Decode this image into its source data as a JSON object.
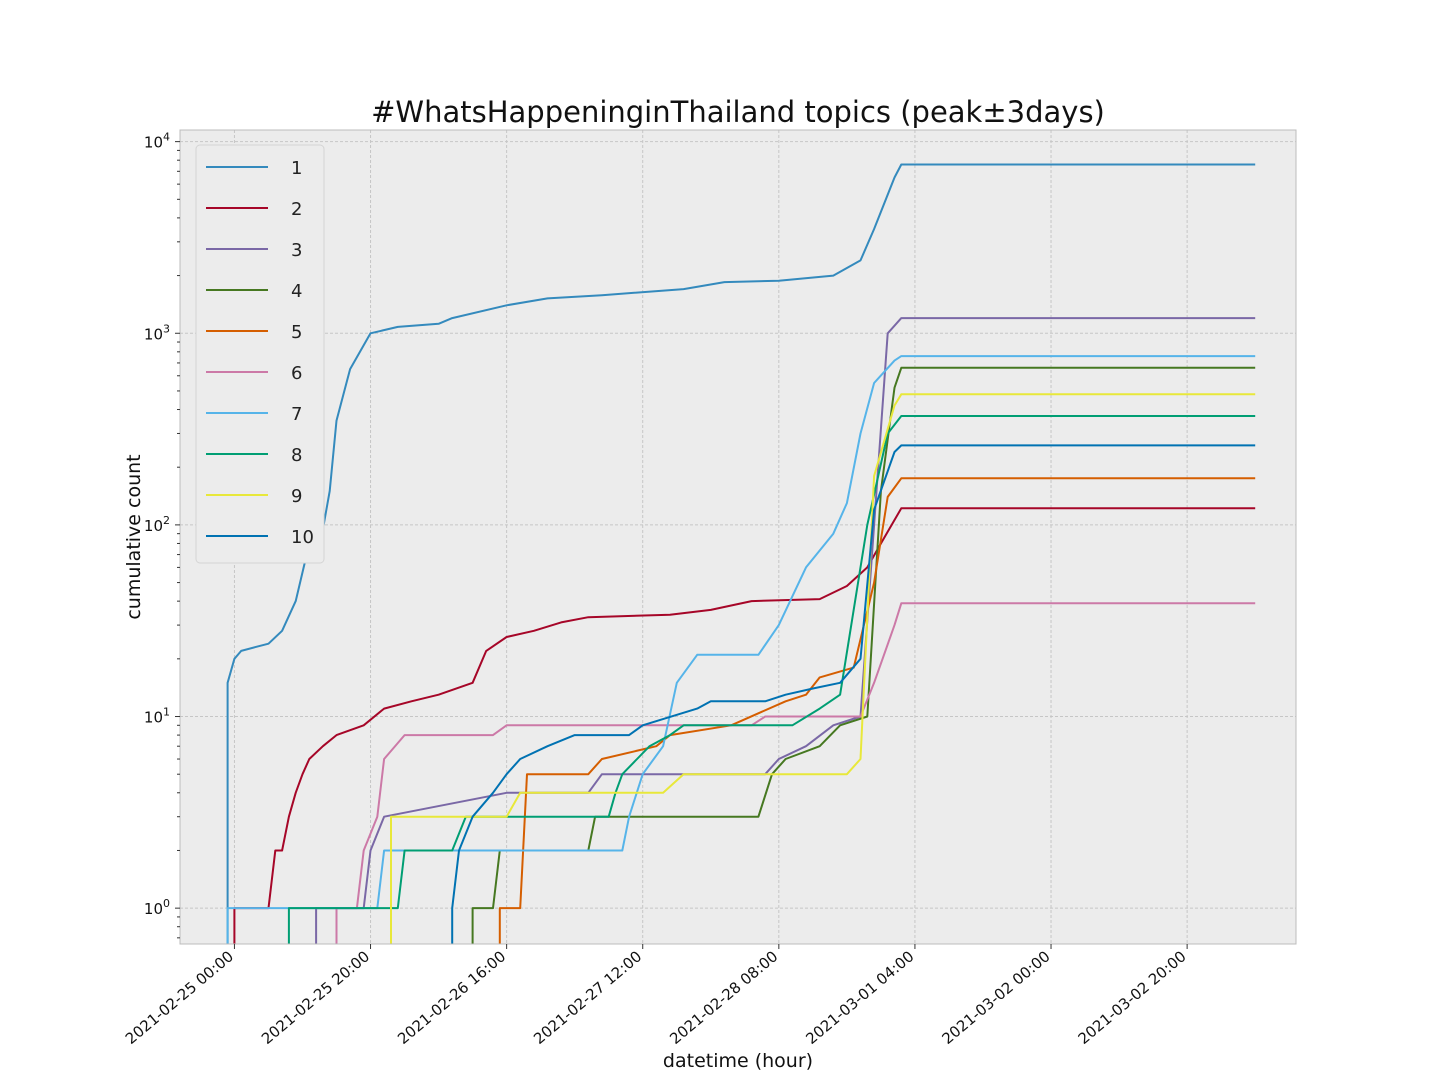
{
  "chart_data": {
    "type": "line",
    "title": "#WhatsHappeninginThailand topics (peak±3days)",
    "xlabel": "datetime (hour)",
    "ylabel": "cumulative count",
    "y_scale": "log",
    "ylim": [
      0.65,
      11500
    ],
    "xlim": [
      "2021-02-24 16:00",
      "2021-03-03 12:00"
    ],
    "x_ticks": [
      "2021-02-25 00:00",
      "2021-02-25 20:00",
      "2021-02-26 16:00",
      "2021-02-27 12:00",
      "2021-02-28 08:00",
      "2021-03-01 04:00",
      "2021-03-02 00:00",
      "2021-03-02 20:00"
    ],
    "y_ticks": [
      {
        "value": 1,
        "base": "10",
        "exp": "0"
      },
      {
        "value": 10,
        "base": "10",
        "exp": "1"
      },
      {
        "value": 100,
        "base": "10",
        "exp": "2"
      },
      {
        "value": 1000,
        "base": "10",
        "exp": "3"
      },
      {
        "value": 10000,
        "base": "10",
        "exp": "4"
      }
    ],
    "grid": true,
    "legend_position": "top-left",
    "background_color": "#ececec",
    "series": [
      {
        "name": "1",
        "color": "#348abd",
        "points": [
          [
            "2021-02-24 23:00",
            0.01
          ],
          [
            "2021-02-24 23:00",
            15
          ],
          [
            "2021-02-25 00:00",
            20
          ],
          [
            "2021-02-25 01:00",
            22
          ],
          [
            "2021-02-25 03:00",
            23
          ],
          [
            "2021-02-25 05:00",
            24
          ],
          [
            "2021-02-25 07:00",
            28
          ],
          [
            "2021-02-25 09:00",
            40
          ],
          [
            "2021-02-25 11:00",
            80
          ],
          [
            "2021-02-25 13:00",
            95
          ],
          [
            "2021-02-25 14:00",
            150
          ],
          [
            "2021-02-25 15:00",
            350
          ],
          [
            "2021-02-25 17:00",
            650
          ],
          [
            "2021-02-25 20:00",
            1000
          ],
          [
            "2021-02-26 00:00",
            1080
          ],
          [
            "2021-02-26 06:00",
            1120
          ],
          [
            "2021-02-26 08:00",
            1200
          ],
          [
            "2021-02-26 16:00",
            1400
          ],
          [
            "2021-02-26 22:00",
            1520
          ],
          [
            "2021-02-27 06:00",
            1580
          ],
          [
            "2021-02-27 18:00",
            1700
          ],
          [
            "2021-02-28 00:00",
            1850
          ],
          [
            "2021-02-28 08:00",
            1880
          ],
          [
            "2021-02-28 16:00",
            2000
          ],
          [
            "2021-02-28 20:00",
            2400
          ],
          [
            "2021-02-28 22:00",
            3500
          ],
          [
            "2021-03-01 01:00",
            6500
          ],
          [
            "2021-03-01 02:00",
            7600
          ],
          [
            "2021-03-03 06:00",
            7600
          ]
        ]
      },
      {
        "name": "2",
        "color": "#a60628",
        "points": [
          [
            "2021-02-25 00:00",
            0.01
          ],
          [
            "2021-02-25 00:00",
            1
          ],
          [
            "2021-02-25 05:00",
            1
          ],
          [
            "2021-02-25 06:00",
            2
          ],
          [
            "2021-02-25 07:00",
            2
          ],
          [
            "2021-02-25 08:00",
            3
          ],
          [
            "2021-02-25 09:00",
            4
          ],
          [
            "2021-02-25 10:00",
            5
          ],
          [
            "2021-02-25 11:00",
            6
          ],
          [
            "2021-02-25 13:00",
            7
          ],
          [
            "2021-02-25 15:00",
            8
          ],
          [
            "2021-02-25 19:00",
            9
          ],
          [
            "2021-02-25 22:00",
            11
          ],
          [
            "2021-02-26 02:00",
            12
          ],
          [
            "2021-02-26 06:00",
            13
          ],
          [
            "2021-02-26 11:00",
            15
          ],
          [
            "2021-02-26 13:00",
            22
          ],
          [
            "2021-02-26 16:00",
            26
          ],
          [
            "2021-02-26 20:00",
            28
          ],
          [
            "2021-02-27 00:00",
            31
          ],
          [
            "2021-02-27 04:00",
            33
          ],
          [
            "2021-02-27 16:00",
            34
          ],
          [
            "2021-02-27 22:00",
            36
          ],
          [
            "2021-02-28 04:00",
            40
          ],
          [
            "2021-02-28 14:00",
            41
          ],
          [
            "2021-02-28 18:00",
            48
          ],
          [
            "2021-02-28 21:00",
            60
          ],
          [
            "2021-02-28 23:00",
            80
          ],
          [
            "2021-03-01 02:00",
            122
          ],
          [
            "2021-03-03 06:00",
            122
          ]
        ]
      },
      {
        "name": "3",
        "color": "#7a68a6",
        "points": [
          [
            "2021-02-25 12:00",
            0.01
          ],
          [
            "2021-02-25 12:00",
            1
          ],
          [
            "2021-02-25 19:00",
            1
          ],
          [
            "2021-02-25 20:00",
            2
          ],
          [
            "2021-02-25 22:00",
            3
          ],
          [
            "2021-02-26 16:00",
            4
          ],
          [
            "2021-02-27 04:00",
            4
          ],
          [
            "2021-02-27 06:00",
            5
          ],
          [
            "2021-02-27 22:00",
            5
          ],
          [
            "2021-02-28 06:00",
            5
          ],
          [
            "2021-02-28 08:00",
            6
          ],
          [
            "2021-02-28 12:00",
            7
          ],
          [
            "2021-02-28 16:00",
            9
          ],
          [
            "2021-02-28 20:00",
            10
          ],
          [
            "2021-02-28 22:00",
            100
          ],
          [
            "2021-03-01 00:00",
            1000
          ],
          [
            "2021-03-01 02:00",
            1200
          ],
          [
            "2021-03-03 06:00",
            1200
          ]
        ]
      },
      {
        "name": "4",
        "color": "#467821",
        "points": [
          [
            "2021-02-26 11:00",
            0.01
          ],
          [
            "2021-02-26 11:00",
            1
          ],
          [
            "2021-02-26 14:00",
            1
          ],
          [
            "2021-02-26 15:00",
            2
          ],
          [
            "2021-02-27 04:00",
            2
          ],
          [
            "2021-02-27 05:00",
            3
          ],
          [
            "2021-02-28 05:00",
            3
          ],
          [
            "2021-02-28 07:00",
            5
          ],
          [
            "2021-02-28 09:00",
            6
          ],
          [
            "2021-02-28 14:00",
            7
          ],
          [
            "2021-02-28 17:00",
            9
          ],
          [
            "2021-02-28 21:00",
            10
          ],
          [
            "2021-02-28 23:00",
            150
          ],
          [
            "2021-03-01 01:00",
            520
          ],
          [
            "2021-03-01 02:00",
            660
          ],
          [
            "2021-03-03 06:00",
            660
          ]
        ]
      },
      {
        "name": "5",
        "color": "#d55e00",
        "points": [
          [
            "2021-02-26 15:00",
            0.01
          ],
          [
            "2021-02-26 15:00",
            1
          ],
          [
            "2021-02-26 18:00",
            1
          ],
          [
            "2021-02-26 19:00",
            5
          ],
          [
            "2021-02-27 04:00",
            5
          ],
          [
            "2021-02-27 06:00",
            6
          ],
          [
            "2021-02-27 14:00",
            7
          ],
          [
            "2021-02-27 16:00",
            8
          ],
          [
            "2021-02-28 01:00",
            9
          ],
          [
            "2021-02-28 09:00",
            12
          ],
          [
            "2021-02-28 12:00",
            13
          ],
          [
            "2021-02-28 14:00",
            16
          ],
          [
            "2021-02-28 19:00",
            18
          ],
          [
            "2021-02-28 22:00",
            50
          ],
          [
            "2021-03-01 00:00",
            140
          ],
          [
            "2021-03-01 02:00",
            175
          ],
          [
            "2021-03-03 06:00",
            175
          ]
        ]
      },
      {
        "name": "6",
        "color": "#cc79a7",
        "points": [
          [
            "2021-02-25 15:00",
            0.01
          ],
          [
            "2021-02-25 15:00",
            1
          ],
          [
            "2021-02-25 18:00",
            1
          ],
          [
            "2021-02-25 19:00",
            2
          ],
          [
            "2021-02-25 21:00",
            3
          ],
          [
            "2021-02-25 22:00",
            6
          ],
          [
            "2021-02-26 01:00",
            8
          ],
          [
            "2021-02-26 14:00",
            8
          ],
          [
            "2021-02-26 16:00",
            9
          ],
          [
            "2021-02-28 04:00",
            9
          ],
          [
            "2021-02-28 06:00",
            10
          ],
          [
            "2021-02-28 20:00",
            10
          ],
          [
            "2021-02-28 22:00",
            15
          ],
          [
            "2021-03-01 01:00",
            30
          ],
          [
            "2021-03-01 02:00",
            39
          ],
          [
            "2021-03-03 06:00",
            39
          ]
        ]
      },
      {
        "name": "7",
        "color": "#56b4e9",
        "points": [
          [
            "2021-02-24 23:00",
            0.01
          ],
          [
            "2021-02-24 23:00",
            1
          ],
          [
            "2021-02-25 21:00",
            1
          ],
          [
            "2021-02-25 22:00",
            2
          ],
          [
            "2021-02-27 09:00",
            2
          ],
          [
            "2021-02-27 10:00",
            3
          ],
          [
            "2021-02-27 12:00",
            5
          ],
          [
            "2021-02-27 15:00",
            7
          ],
          [
            "2021-02-27 17:00",
            15
          ],
          [
            "2021-02-27 20:00",
            21
          ],
          [
            "2021-02-28 05:00",
            21
          ],
          [
            "2021-02-28 08:00",
            30
          ],
          [
            "2021-02-28 12:00",
            60
          ],
          [
            "2021-02-28 16:00",
            90
          ],
          [
            "2021-02-28 18:00",
            130
          ],
          [
            "2021-02-28 20:00",
            300
          ],
          [
            "2021-02-28 22:00",
            550
          ],
          [
            "2021-03-01 01:00",
            720
          ],
          [
            "2021-03-01 02:00",
            760
          ],
          [
            "2021-03-03 06:00",
            760
          ]
        ]
      },
      {
        "name": "8",
        "color": "#009e73",
        "points": [
          [
            "2021-02-25 08:00",
            0.01
          ],
          [
            "2021-02-25 08:00",
            1
          ],
          [
            "2021-02-26 00:00",
            1
          ],
          [
            "2021-02-26 01:00",
            2
          ],
          [
            "2021-02-26 08:00",
            2
          ],
          [
            "2021-02-26 10:00",
            3
          ],
          [
            "2021-02-27 07:00",
            3
          ],
          [
            "2021-02-27 08:00",
            4
          ],
          [
            "2021-02-27 09:00",
            5
          ],
          [
            "2021-02-27 13:00",
            7
          ],
          [
            "2021-02-27 16:00",
            8
          ],
          [
            "2021-02-27 18:00",
            9
          ],
          [
            "2021-02-28 10:00",
            9
          ],
          [
            "2021-02-28 14:00",
            11
          ],
          [
            "2021-02-28 17:00",
            13
          ],
          [
            "2021-02-28 21:00",
            100
          ],
          [
            "2021-03-01 00:00",
            300
          ],
          [
            "2021-03-01 02:00",
            370
          ],
          [
            "2021-03-03 06:00",
            370
          ]
        ]
      },
      {
        "name": "9",
        "color": "#e8e83a",
        "points": [
          [
            "2021-02-25 23:00",
            0.01
          ],
          [
            "2021-02-25 23:00",
            3
          ],
          [
            "2021-02-26 16:00",
            3
          ],
          [
            "2021-02-26 18:00",
            4
          ],
          [
            "2021-02-27 15:00",
            4
          ],
          [
            "2021-02-27 18:00",
            5
          ],
          [
            "2021-02-28 18:00",
            5
          ],
          [
            "2021-02-28 20:00",
            6
          ],
          [
            "2021-02-28 22:00",
            180
          ],
          [
            "2021-03-01 01:00",
            420
          ],
          [
            "2021-03-01 02:00",
            480
          ],
          [
            "2021-03-03 06:00",
            480
          ]
        ]
      },
      {
        "name": "10",
        "color": "#0072b2",
        "points": [
          [
            "2021-02-26 08:00",
            0.01
          ],
          [
            "2021-02-26 08:00",
            1
          ],
          [
            "2021-02-26 09:00",
            2
          ],
          [
            "2021-02-26 11:00",
            3
          ],
          [
            "2021-02-26 14:00",
            4
          ],
          [
            "2021-02-26 16:00",
            5
          ],
          [
            "2021-02-26 18:00",
            6
          ],
          [
            "2021-02-26 22:00",
            7
          ],
          [
            "2021-02-27 02:00",
            8
          ],
          [
            "2021-02-27 10:00",
            8
          ],
          [
            "2021-02-27 12:00",
            9
          ],
          [
            "2021-02-27 20:00",
            11
          ],
          [
            "2021-02-27 22:00",
            12
          ],
          [
            "2021-02-28 06:00",
            12
          ],
          [
            "2021-02-28 09:00",
            13
          ],
          [
            "2021-02-28 13:00",
            14
          ],
          [
            "2021-02-28 17:00",
            15
          ],
          [
            "2021-02-28 20:00",
            20
          ],
          [
            "2021-02-28 22:00",
            120
          ],
          [
            "2021-03-01 01:00",
            240
          ],
          [
            "2021-03-01 02:00",
            260
          ],
          [
            "2021-03-03 06:00",
            260
          ]
        ]
      }
    ]
  }
}
